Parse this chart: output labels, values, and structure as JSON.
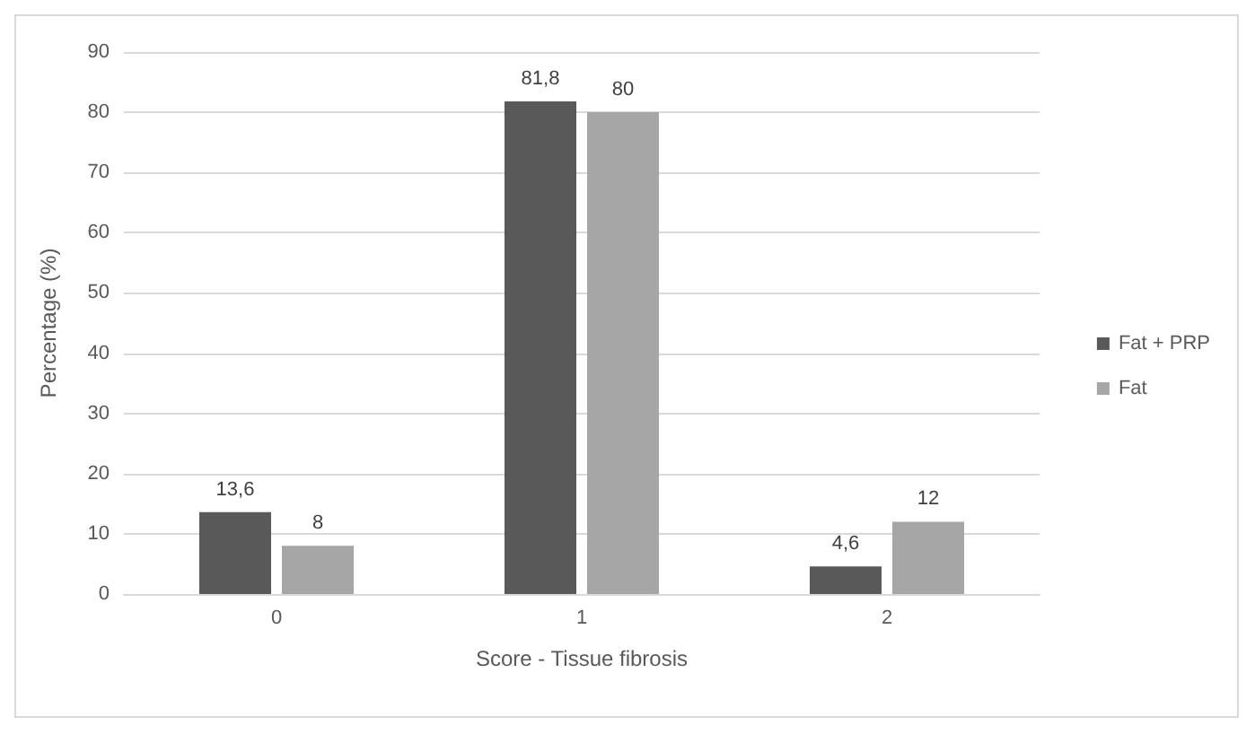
{
  "chart_data": {
    "type": "bar",
    "xlabel": "Score - Tissue fibrosis",
    "ylabel": "Percentage (%)",
    "categories": [
      "0",
      "1",
      "2"
    ],
    "series": [
      {
        "name": "Fat + PRP",
        "color": "#595959",
        "values": [
          13.6,
          81.8,
          4.6
        ],
        "value_labels": [
          "13,6",
          "81,8",
          "4,6"
        ]
      },
      {
        "name": "Fat",
        "color": "#a6a6a6",
        "values": [
          8,
          80,
          12
        ],
        "value_labels": [
          "8",
          "80",
          "12"
        ]
      }
    ],
    "ylim": [
      0,
      90
    ],
    "yticks": [
      0,
      10,
      20,
      30,
      40,
      50,
      60,
      70,
      80,
      90
    ],
    "grid": "y",
    "legend": "right"
  }
}
